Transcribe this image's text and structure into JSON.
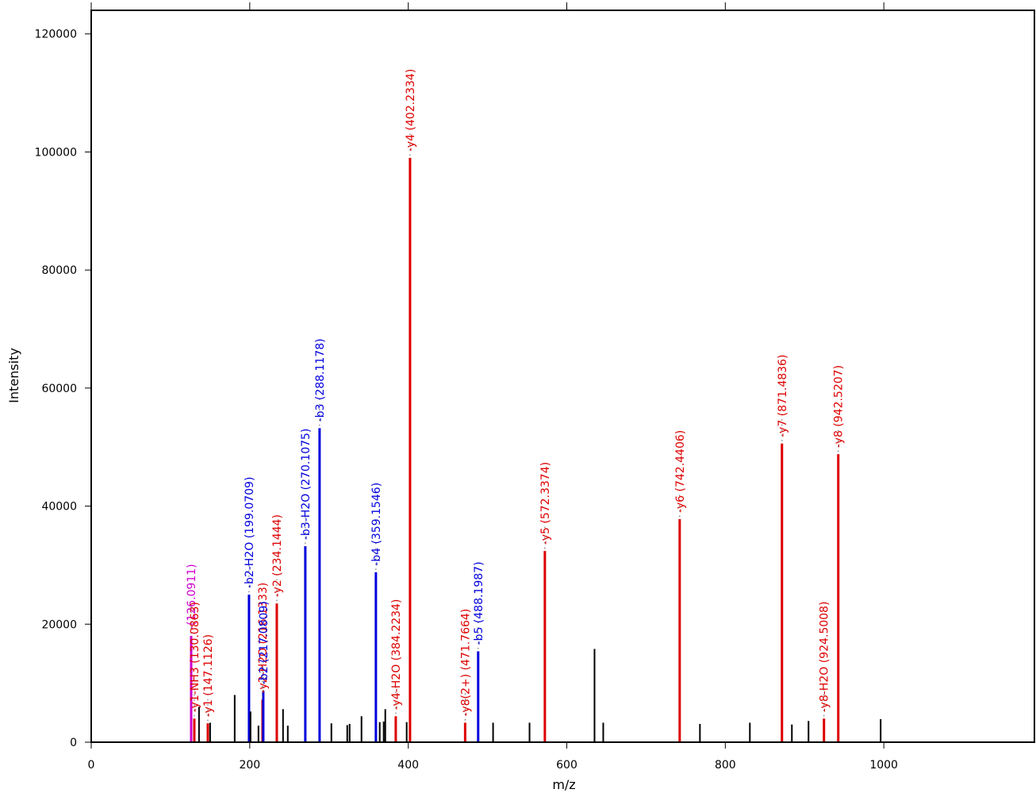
{
  "chart_data": {
    "type": "bar",
    "xlabel": "m/z",
    "ylabel": "Intensity",
    "xlim": [
      0,
      1190
    ],
    "ylim": [
      0,
      124000
    ],
    "x_ticks": [
      0,
      200,
      400,
      600,
      800,
      1000
    ],
    "y_ticks": [
      0,
      20000,
      40000,
      60000,
      80000,
      100000,
      120000
    ],
    "colors": {
      "y_ion": "#dd0000",
      "b_ion": "#0000dd",
      "immonium": "#cc00cc",
      "unannotated": "#000000"
    },
    "peaks": [
      {
        "mz": 126.0911,
        "intensity": 18000,
        "color": "#cc00cc",
        "label": "-(126.0911)"
      },
      {
        "mz": 130.0863,
        "intensity": 4000,
        "color": "#dd0000",
        "label": "-y1-NH3 (130.0863)"
      },
      {
        "mz": 136.0,
        "intensity": 6000,
        "color": "#000000",
        "label": ""
      },
      {
        "mz": 147.1126,
        "intensity": 3200,
        "color": "#dd0000",
        "label": "-y1 (147.1126)"
      },
      {
        "mz": 150.0,
        "intensity": 3300,
        "color": "#000000",
        "label": ""
      },
      {
        "mz": 181.0,
        "intensity": 8000,
        "color": "#000000",
        "label": ""
      },
      {
        "mz": 199.0709,
        "intensity": 25000,
        "color": "#0000dd",
        "label": "-b2-H2O (199.0709)"
      },
      {
        "mz": 201.0,
        "intensity": 5200,
        "color": "#000000",
        "label": ""
      },
      {
        "mz": 211.0,
        "intensity": 2800,
        "color": "#000000",
        "label": ""
      },
      {
        "mz": 216.1333,
        "intensity": 7200,
        "color": "#dd0000",
        "label": "-y2-H2O (216.1333)"
      },
      {
        "mz": 217.0809,
        "intensity": 8700,
        "color": "#0000dd",
        "label": "-b2 (217.0809)"
      },
      {
        "mz": 234.1444,
        "intensity": 23500,
        "color": "#dd0000",
        "label": "-y2 (234.1444)"
      },
      {
        "mz": 242.0,
        "intensity": 5600,
        "color": "#000000",
        "label": ""
      },
      {
        "mz": 248.0,
        "intensity": 2800,
        "color": "#000000",
        "label": ""
      },
      {
        "mz": 270.1075,
        "intensity": 33200,
        "color": "#0000dd",
        "label": "-b3-H2O (270.1075)"
      },
      {
        "mz": 288.1178,
        "intensity": 53200,
        "color": "#0000dd",
        "label": "-b3 (288.1178)"
      },
      {
        "mz": 303.0,
        "intensity": 3200,
        "color": "#000000",
        "label": ""
      },
      {
        "mz": 323.0,
        "intensity": 2900,
        "color": "#000000",
        "label": ""
      },
      {
        "mz": 326.0,
        "intensity": 3100,
        "color": "#000000",
        "label": ""
      },
      {
        "mz": 341.0,
        "intensity": 4400,
        "color": "#000000",
        "label": ""
      },
      {
        "mz": 359.1546,
        "intensity": 28800,
        "color": "#0000dd",
        "label": "-b4 (359.1546)"
      },
      {
        "mz": 364.0,
        "intensity": 3400,
        "color": "#000000",
        "label": ""
      },
      {
        "mz": 369.0,
        "intensity": 3500,
        "color": "#000000",
        "label": ""
      },
      {
        "mz": 371.0,
        "intensity": 5600,
        "color": "#000000",
        "label": ""
      },
      {
        "mz": 384.2234,
        "intensity": 4400,
        "color": "#dd0000",
        "label": "-y4-H2O (384.2234)"
      },
      {
        "mz": 398.0,
        "intensity": 3400,
        "color": "#000000",
        "label": ""
      },
      {
        "mz": 402.2334,
        "intensity": 99000,
        "color": "#dd0000",
        "label": "-y4 (402.2334)"
      },
      {
        "mz": 471.7664,
        "intensity": 3300,
        "color": "#dd0000",
        "label": "-y8(2+) (471.7664)"
      },
      {
        "mz": 488.1987,
        "intensity": 15400,
        "color": "#0000dd",
        "label": "-b5 (488.1987)"
      },
      {
        "mz": 507.0,
        "intensity": 3300,
        "color": "#000000",
        "label": ""
      },
      {
        "mz": 553.0,
        "intensity": 3300,
        "color": "#000000",
        "label": ""
      },
      {
        "mz": 572.3374,
        "intensity": 32400,
        "color": "#dd0000",
        "label": "-y5 (572.3374)"
      },
      {
        "mz": 635.0,
        "intensity": 15800,
        "color": "#000000",
        "label": ""
      },
      {
        "mz": 646.0,
        "intensity": 3300,
        "color": "#000000",
        "label": ""
      },
      {
        "mz": 742.4406,
        "intensity": 37800,
        "color": "#dd0000",
        "label": "-y6 (742.4406)"
      },
      {
        "mz": 768.0,
        "intensity": 3100,
        "color": "#000000",
        "label": ""
      },
      {
        "mz": 831.0,
        "intensity": 3300,
        "color": "#000000",
        "label": ""
      },
      {
        "mz": 871.4836,
        "intensity": 50600,
        "color": "#dd0000",
        "label": "-y7 (871.4836)"
      },
      {
        "mz": 884.0,
        "intensity": 3000,
        "color": "#000000",
        "label": ""
      },
      {
        "mz": 905.0,
        "intensity": 3600,
        "color": "#000000",
        "label": ""
      },
      {
        "mz": 924.5008,
        "intensity": 4000,
        "color": "#dd0000",
        "label": "-y8-H2O (924.5008)"
      },
      {
        "mz": 942.5207,
        "intensity": 48800,
        "color": "#dd0000",
        "label": "-y8 (942.5207)"
      },
      {
        "mz": 996.0,
        "intensity": 3900,
        "color": "#000000",
        "label": ""
      }
    ]
  }
}
